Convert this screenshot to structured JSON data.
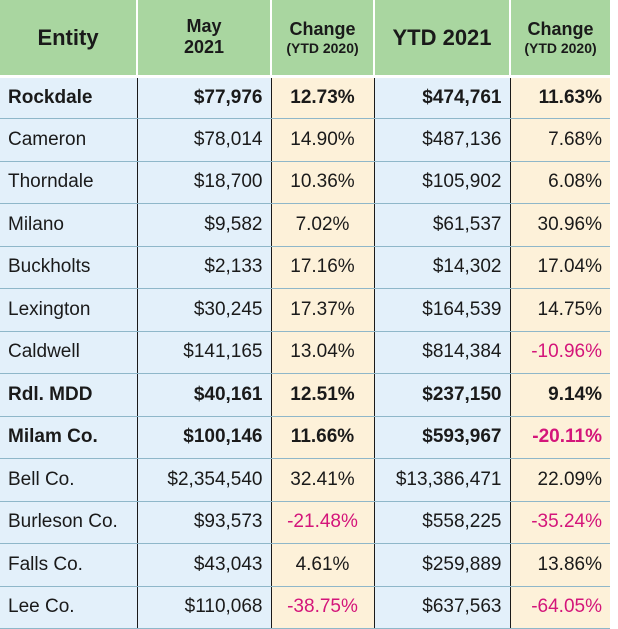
{
  "header": {
    "entity": "Entity",
    "may_line1": "May",
    "may_line2": "2021",
    "change1_line1": "Change",
    "change1_line2": "(YTD 2020)",
    "ytd": "YTD 2021",
    "change2_line1": "Change",
    "change2_line2": "(YTD 2020)"
  },
  "colors": {
    "header_bg": "#a9d6a0",
    "value_bg": "#e3f0fa",
    "change_bg": "#fdf1d9",
    "negative": "#d4157a"
  },
  "rows": [
    {
      "entity": "Rockdale",
      "may": "$77,976",
      "change_may": "12.73%",
      "ytd": "$474,761",
      "change_ytd": "11.63%",
      "bold": true
    },
    {
      "entity": "Cameron",
      "may": "$78,014",
      "change_may": "14.90%",
      "ytd": "$487,136",
      "change_ytd": "7.68%",
      "bold": false
    },
    {
      "entity": "Thorndale",
      "may": "$18,700",
      "change_may": "10.36%",
      "ytd": "$105,902",
      "change_ytd": "6.08%",
      "bold": false
    },
    {
      "entity": "Milano",
      "may": "$9,582",
      "change_may": "7.02%",
      "ytd": "$61,537",
      "change_ytd": "30.96%",
      "bold": false
    },
    {
      "entity": "Buckholts",
      "may": "$2,133",
      "change_may": "17.16%",
      "ytd": "$14,302",
      "change_ytd": "17.04%",
      "bold": false
    },
    {
      "entity": "Lexington",
      "may": "$30,245",
      "change_may": "17.37%",
      "ytd": "$164,539",
      "change_ytd": "14.75%",
      "bold": false
    },
    {
      "entity": "Caldwell",
      "may": "$141,165",
      "change_may": "13.04%",
      "ytd": "$814,384",
      "change_ytd": "-10.96%",
      "bold": false
    },
    {
      "entity": "Rdl. MDD",
      "may": "$40,161",
      "change_may": "12.51%",
      "ytd": "$237,150",
      "change_ytd": "9.14%",
      "bold": true
    },
    {
      "entity": "Milam Co.",
      "may": "$100,146",
      "change_may": "11.66%",
      "ytd": "$593,967",
      "change_ytd": "-20.11%",
      "bold": true
    },
    {
      "entity": "Bell Co.",
      "may": "$2,354,540",
      "change_may": "32.41%",
      "ytd": "$13,386,471",
      "change_ytd": "22.09%",
      "bold": false
    },
    {
      "entity": "Burleson Co.",
      "may": "$93,573",
      "change_may": "-21.48%",
      "ytd": "$558,225",
      "change_ytd": "-35.24%",
      "bold": false
    },
    {
      "entity": "Falls Co.",
      "may": "$43,043",
      "change_may": "4.61%",
      "ytd": "$259,889",
      "change_ytd": "13.86%",
      "bold": false
    },
    {
      "entity": "Lee Co.",
      "may": "$110,068",
      "change_may": "-38.75%",
      "ytd": "$637,563",
      "change_ytd": "-64.05%",
      "bold": false
    }
  ]
}
